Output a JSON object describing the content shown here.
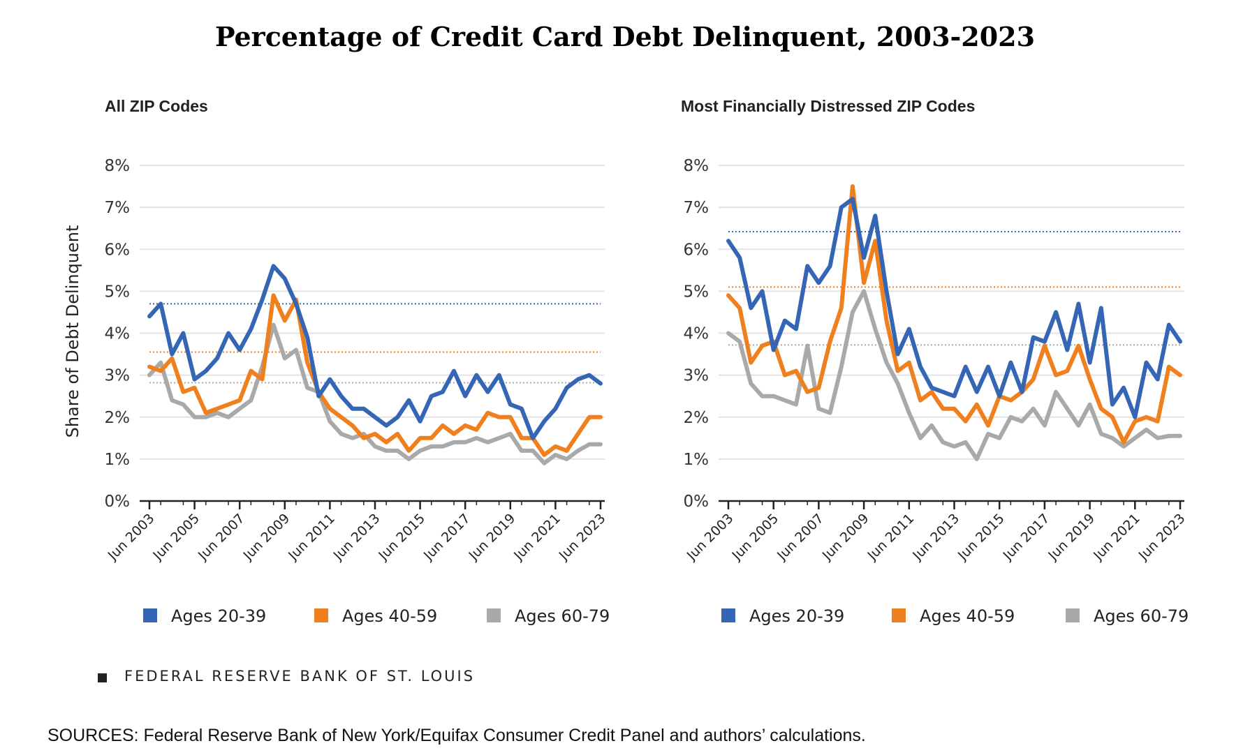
{
  "title": "Percentage of Credit Card Debt Delinquent, 2003-2023",
  "fed_credit": "FEDERAL RESERVE BANK OF ST. LOUIS",
  "sources": "SOURCES: Federal Reserve Bank of New York/Equifax Consumer Credit Panel and authors’ calculations.",
  "colors": {
    "ages_20_39": "#3466b5",
    "ages_40_59": "#f07f1e",
    "ages_60_79": "#a9a9a9",
    "grid": "#e3e3e3",
    "axis": "#222222"
  },
  "chart_data": [
    {
      "type": "line",
      "title": "All ZIP Codes",
      "ylabel": "Share of Debt Delinquent",
      "xlabel": "",
      "ylim": [
        0,
        8
      ],
      "y_ticks": [
        "0%",
        "1%",
        "2%",
        "3%",
        "4%",
        "5%",
        "6%",
        "7%",
        "8%"
      ],
      "x_ticks": [
        "Jun 2003",
        "Jun 2005",
        "Jun 2007",
        "Jun 2009",
        "Jun 2011",
        "Jun 2013",
        "Jun 2015",
        "Jun 2017",
        "Jun 2019",
        "Jun 2021",
        "Jun 2023"
      ],
      "x_range": [
        2003.5,
        2023.5
      ],
      "grid": true,
      "legend_position": "bottom",
      "series": [
        {
          "name": "Ages 20-39",
          "reference": 4.7,
          "x": [
            2003.5,
            2004,
            2004.5,
            2005,
            2005.5,
            2006,
            2006.5,
            2007,
            2007.5,
            2008,
            2008.5,
            2009,
            2009.5,
            2010,
            2010.5,
            2011,
            2011.5,
            2012,
            2012.5,
            2013,
            2013.5,
            2014,
            2014.5,
            2015,
            2015.5,
            2016,
            2016.5,
            2017,
            2017.5,
            2018,
            2018.5,
            2019,
            2019.5,
            2020,
            2020.5,
            2021,
            2021.5,
            2022,
            2022.5,
            2023,
            2023.5
          ],
          "values": [
            4.4,
            4.7,
            3.5,
            4.0,
            2.9,
            3.1,
            3.4,
            4.0,
            3.6,
            4.1,
            4.8,
            5.6,
            5.3,
            4.7,
            3.9,
            2.5,
            2.9,
            2.5,
            2.2,
            2.2,
            2.0,
            1.8,
            2.0,
            2.4,
            1.9,
            2.5,
            2.6,
            3.1,
            2.5,
            3.0,
            2.6,
            3.0,
            2.3,
            2.2,
            1.5,
            1.9,
            2.2,
            2.7,
            2.9,
            3.0,
            2.8
          ]
        },
        {
          "name": "Ages 40-59",
          "reference": 3.55,
          "x": [
            2003.5,
            2004,
            2004.5,
            2005,
            2005.5,
            2006,
            2006.5,
            2007,
            2007.5,
            2008,
            2008.5,
            2009,
            2009.5,
            2010,
            2010.5,
            2011,
            2011.5,
            2012,
            2012.5,
            2013,
            2013.5,
            2014,
            2014.5,
            2015,
            2015.5,
            2016,
            2016.5,
            2017,
            2017.5,
            2018,
            2018.5,
            2019,
            2019.5,
            2020,
            2020.5,
            2021,
            2021.5,
            2022,
            2022.5,
            2023,
            2023.5
          ],
          "values": [
            3.2,
            3.1,
            3.4,
            2.6,
            2.7,
            2.1,
            2.2,
            2.3,
            2.4,
            3.1,
            2.9,
            4.9,
            4.3,
            4.8,
            3.3,
            2.6,
            2.2,
            2.0,
            1.8,
            1.5,
            1.6,
            1.4,
            1.6,
            1.2,
            1.5,
            1.5,
            1.8,
            1.6,
            1.8,
            1.7,
            2.1,
            2.0,
            2.0,
            1.5,
            1.5,
            1.1,
            1.3,
            1.2,
            1.6,
            2.0,
            2.0
          ]
        },
        {
          "name": "Ages 60-79",
          "reference": 2.82,
          "x": [
            2003.5,
            2004,
            2004.5,
            2005,
            2005.5,
            2006,
            2006.5,
            2007,
            2007.5,
            2008,
            2008.5,
            2009,
            2009.5,
            2010,
            2010.5,
            2011,
            2011.5,
            2012,
            2012.5,
            2013,
            2013.5,
            2014,
            2014.5,
            2015,
            2015.5,
            2016,
            2016.5,
            2017,
            2017.5,
            2018,
            2018.5,
            2019,
            2019.5,
            2020,
            2020.5,
            2021,
            2021.5,
            2022,
            2022.5,
            2023,
            2023.5
          ],
          "values": [
            3.0,
            3.3,
            2.4,
            2.3,
            2.0,
            2.0,
            2.1,
            2.0,
            2.2,
            2.4,
            3.2,
            4.2,
            3.4,
            3.6,
            2.7,
            2.6,
            1.9,
            1.6,
            1.5,
            1.6,
            1.3,
            1.2,
            1.2,
            1.0,
            1.2,
            1.3,
            1.3,
            1.4,
            1.4,
            1.5,
            1.4,
            1.5,
            1.6,
            1.2,
            1.2,
            0.9,
            1.1,
            1.0,
            1.2,
            1.35,
            1.35
          ]
        }
      ]
    },
    {
      "type": "line",
      "title": "Most Financially Distressed ZIP Codes",
      "ylabel": "",
      "xlabel": "",
      "ylim": [
        0,
        8
      ],
      "y_ticks": [
        "0%",
        "1%",
        "2%",
        "3%",
        "4%",
        "5%",
        "6%",
        "7%",
        "8%"
      ],
      "x_ticks": [
        "Jun 2003",
        "Jun 2005",
        "Jun 2007",
        "Jun 2009",
        "Jun 2011",
        "Jun 2013",
        "Jun 2015",
        "Jun 2017",
        "Jun 2019",
        "Jun 2021",
        "Jun 2023"
      ],
      "x_range": [
        2003.5,
        2023.5
      ],
      "grid": true,
      "legend_position": "bottom",
      "series": [
        {
          "name": "Ages 20-39",
          "reference": 6.42,
          "x": [
            2003.5,
            2004,
            2004.5,
            2005,
            2005.5,
            2006,
            2006.5,
            2007,
            2007.5,
            2008,
            2008.5,
            2009,
            2009.5,
            2010,
            2010.5,
            2011,
            2011.5,
            2012,
            2012.5,
            2013,
            2013.5,
            2014,
            2014.5,
            2015,
            2015.5,
            2016,
            2016.5,
            2017,
            2017.5,
            2018,
            2018.5,
            2019,
            2019.5,
            2020,
            2020.5,
            2021,
            2021.5,
            2022,
            2022.5,
            2023,
            2023.5
          ],
          "values": [
            6.2,
            5.8,
            4.6,
            5.0,
            3.6,
            4.3,
            4.1,
            5.6,
            5.2,
            5.6,
            7.0,
            7.2,
            5.8,
            6.8,
            5.0,
            3.5,
            4.1,
            3.2,
            2.7,
            2.6,
            2.5,
            3.2,
            2.6,
            3.2,
            2.5,
            3.3,
            2.6,
            3.9,
            3.8,
            4.5,
            3.6,
            4.7,
            3.3,
            4.6,
            2.3,
            2.7,
            2.0,
            3.3,
            2.9,
            4.2,
            3.8
          ]
        },
        {
          "name": "Ages 40-59",
          "reference": 5.1,
          "x": [
            2003.5,
            2004,
            2004.5,
            2005,
            2005.5,
            2006,
            2006.5,
            2007,
            2007.5,
            2008,
            2008.5,
            2009,
            2009.5,
            2010,
            2010.5,
            2011,
            2011.5,
            2012,
            2012.5,
            2013,
            2013.5,
            2014,
            2014.5,
            2015,
            2015.5,
            2016,
            2016.5,
            2017,
            2017.5,
            2018,
            2018.5,
            2019,
            2019.5,
            2020,
            2020.5,
            2021,
            2021.5,
            2022,
            2022.5,
            2023,
            2023.5
          ],
          "values": [
            4.9,
            4.6,
            3.3,
            3.7,
            3.8,
            3.0,
            3.1,
            2.6,
            2.7,
            3.8,
            4.6,
            7.5,
            5.2,
            6.2,
            4.3,
            3.1,
            3.3,
            2.4,
            2.6,
            2.2,
            2.2,
            1.9,
            2.3,
            1.8,
            2.5,
            2.4,
            2.6,
            2.9,
            3.7,
            3.0,
            3.1,
            3.7,
            2.9,
            2.2,
            2.0,
            1.4,
            1.9,
            2.0,
            1.9,
            3.2,
            3.0
          ]
        },
        {
          "name": "Ages 60-79",
          "reference": 3.72,
          "x": [
            2003.5,
            2004,
            2004.5,
            2005,
            2005.5,
            2006,
            2006.5,
            2007,
            2007.5,
            2008,
            2008.5,
            2009,
            2009.5,
            2010,
            2010.5,
            2011,
            2011.5,
            2012,
            2012.5,
            2013,
            2013.5,
            2014,
            2014.5,
            2015,
            2015.5,
            2016,
            2016.5,
            2017,
            2017.5,
            2018,
            2018.5,
            2019,
            2019.5,
            2020,
            2020.5,
            2021,
            2021.5,
            2022,
            2022.5,
            2023,
            2023.5
          ],
          "values": [
            4.0,
            3.8,
            2.8,
            2.5,
            2.5,
            2.4,
            2.3,
            3.7,
            2.2,
            2.1,
            3.2,
            4.5,
            5.0,
            4.1,
            3.3,
            2.8,
            2.1,
            1.5,
            1.8,
            1.4,
            1.3,
            1.4,
            1.0,
            1.6,
            1.5,
            2.0,
            1.9,
            2.2,
            1.8,
            2.6,
            2.2,
            1.8,
            2.3,
            1.6,
            1.5,
            1.3,
            1.5,
            1.7,
            1.5,
            1.55,
            1.55
          ]
        }
      ]
    }
  ]
}
